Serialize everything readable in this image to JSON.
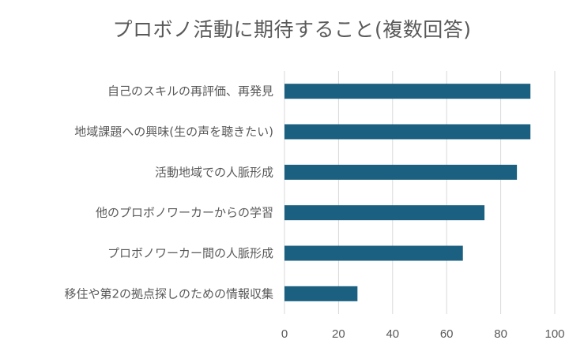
{
  "chart_data": {
    "type": "bar",
    "orientation": "horizontal",
    "title": "プロボノ活動に期待すること(複数回答)",
    "xlabel": "",
    "ylabel": "",
    "categories": [
      "自己のスキルの再評価、再発見",
      "地域課題への興味(生の声を聴きたい)",
      "活動地域での人脈形成",
      "他のプロボノワーカーからの学習",
      "プロボノワーカー間の人脈形成",
      "移住や第2の拠点探しのための情報収集"
    ],
    "values": [
      91,
      91,
      86,
      74,
      66,
      27
    ],
    "xlim": [
      0,
      100
    ],
    "xticks": [
      0,
      20,
      40,
      60,
      80,
      100
    ],
    "grid": true,
    "legend": "none",
    "bar_color": "#1b6080",
    "grid_color": "#d9d9d9"
  }
}
